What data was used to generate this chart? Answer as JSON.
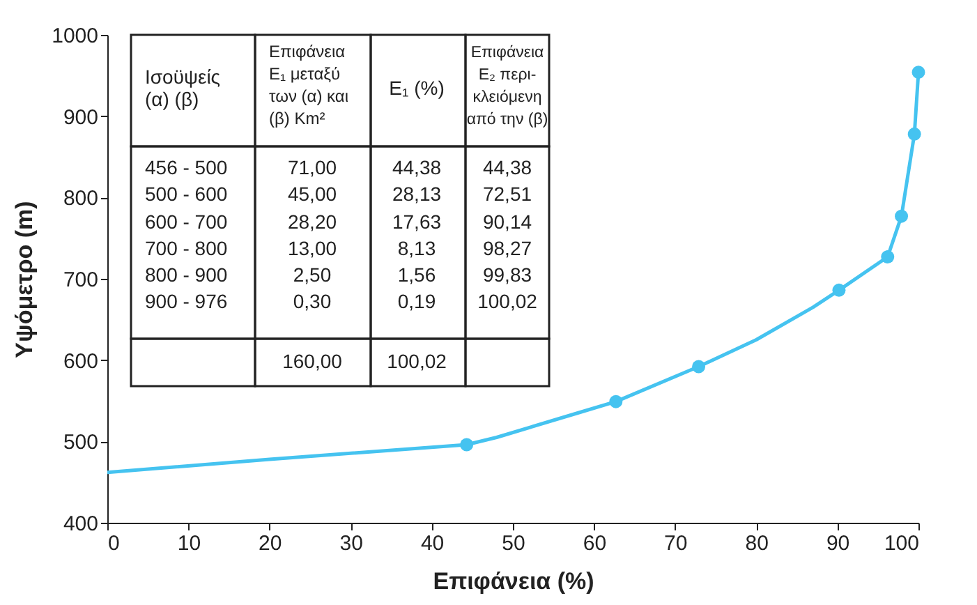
{
  "chart_data": {
    "type": "line",
    "xlabel": "Επιφάνεια (%)",
    "ylabel": "Υψόμετρο (m)",
    "series": [
      {
        "type": "line",
        "color": "#45c3f0",
        "marker": "none",
        "x": [
          0,
          20,
          44.3,
          48,
          58,
          62.7,
          72.9,
          80,
          87,
          90.2,
          96.2,
          97.9,
          99.5,
          100
        ],
        "values": [
          462,
          478,
          496,
          505,
          535,
          549,
          592,
          625,
          665,
          686,
          727,
          777,
          878,
          954
        ]
      },
      {
        "type": "scatter",
        "color": "#45c3f0",
        "marker": "circle",
        "x": [
          44.3,
          62.7,
          72.9,
          90.2,
          96.2,
          97.9,
          99.5,
          100
        ],
        "values": [
          496,
          549,
          592,
          686,
          727,
          777,
          878,
          954
        ]
      }
    ],
    "xlim": [
      0,
      100
    ],
    "xticks": [
      0,
      10,
      20,
      30,
      40,
      50,
      60,
      70,
      80,
      90,
      100
    ],
    "ylim": [
      400,
      1000
    ],
    "yticks": [
      400,
      500,
      600,
      700,
      800,
      900,
      {
        "value": 1000,
        "label": "1000"
      }
    ],
    "grid": false,
    "annotations": [
      "Ισοϋψείς\n(α)      (β)",
      "Επιφάνεια\nE₁ μεταξύ\nτων (α) και\n(β)  Km²",
      "E₁ (%)",
      "Επιφάνεια\nE₂  περι-\nκλειόμενη\nαπό την (β)",
      "456 - 500",
      "71,00",
      "44,38",
      "44,38",
      "500 - 600",
      "45,00",
      "28,13",
      "72,51",
      "600 - 700",
      "28,20",
      "17,63",
      "90,14",
      "700 - 800",
      "13,00",
      "8,13",
      "98,27",
      "800 - 900",
      "2,50",
      "1,56",
      "99,83",
      "900 - 976",
      "0,30",
      "0,19",
      "100,02",
      "160,00",
      "100,02"
    ]
  }
}
